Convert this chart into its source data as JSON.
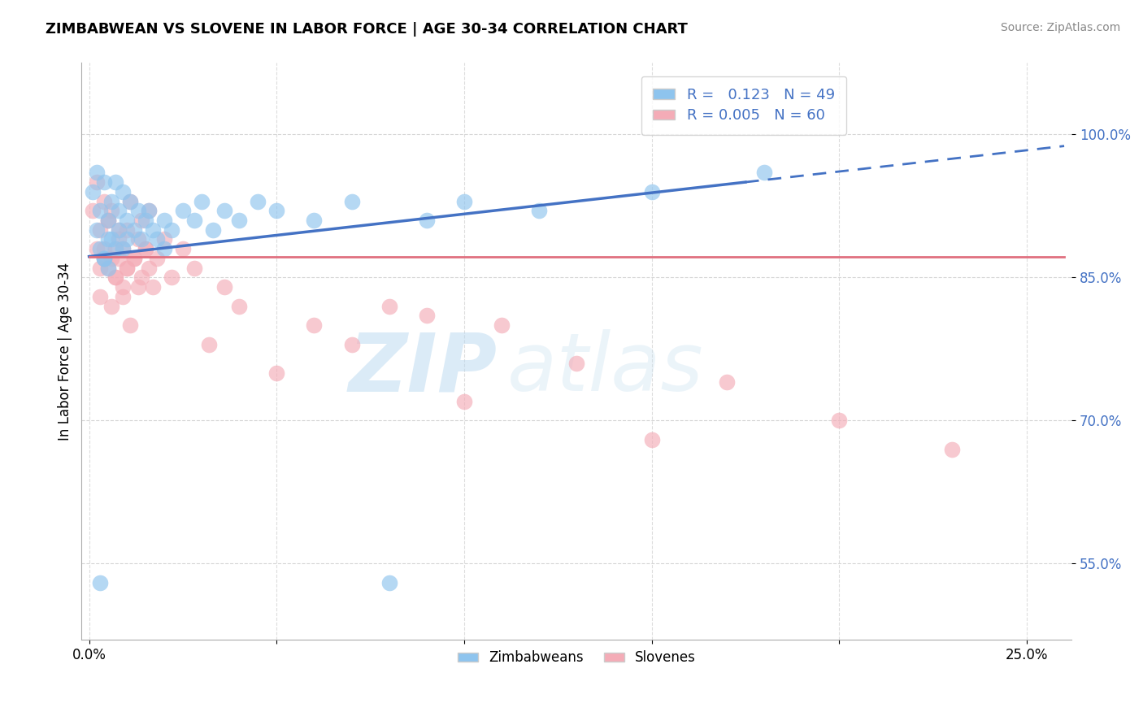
{
  "title": "ZIMBABWEAN VS SLOVENE IN LABOR FORCE | AGE 30-34 CORRELATION CHART",
  "source": "Source: ZipAtlas.com",
  "ylabel": "In Labor Force | Age 30-34",
  "x_ticks": [
    0.0,
    0.05,
    0.1,
    0.15,
    0.2,
    0.25
  ],
  "x_tick_labels": [
    "0.0%",
    "",
    "",
    "",
    "",
    "25.0%"
  ],
  "y_ticks": [
    0.55,
    0.7,
    0.85,
    1.0
  ],
  "y_tick_labels": [
    "55.0%",
    "70.0%",
    "85.0%",
    "100.0%"
  ],
  "xlim": [
    -0.002,
    0.262
  ],
  "ylim": [
    0.47,
    1.075
  ],
  "legend_R1": "0.123",
  "legend_N1": "49",
  "legend_R2": "0.005",
  "legend_N2": "60",
  "color_blue": "#8EC4EE",
  "color_pink": "#F4ACB7",
  "color_blue_line": "#4472C4",
  "color_pink_line": "#E07080",
  "watermark_zip": "ZIP",
  "watermark_atlas": "atlas",
  "zimbabwean_x": [
    0.001,
    0.002,
    0.002,
    0.003,
    0.003,
    0.004,
    0.004,
    0.005,
    0.005,
    0.006,
    0.006,
    0.007,
    0.007,
    0.008,
    0.008,
    0.009,
    0.009,
    0.01,
    0.01,
    0.011,
    0.012,
    0.013,
    0.014,
    0.015,
    0.016,
    0.017,
    0.018,
    0.02,
    0.022,
    0.025,
    0.028,
    0.03,
    0.033,
    0.036,
    0.04,
    0.045,
    0.05,
    0.06,
    0.07,
    0.08,
    0.09,
    0.1,
    0.12,
    0.15,
    0.18,
    0.02,
    0.003,
    0.004,
    0.005
  ],
  "zimbabwean_y": [
    0.94,
    0.96,
    0.9,
    0.92,
    0.88,
    0.95,
    0.87,
    0.91,
    0.86,
    0.93,
    0.89,
    0.95,
    0.88,
    0.92,
    0.9,
    0.94,
    0.88,
    0.91,
    0.89,
    0.93,
    0.9,
    0.92,
    0.89,
    0.91,
    0.92,
    0.9,
    0.89,
    0.91,
    0.9,
    0.92,
    0.91,
    0.93,
    0.9,
    0.92,
    0.91,
    0.93,
    0.92,
    0.91,
    0.93,
    0.53,
    0.91,
    0.93,
    0.92,
    0.94,
    0.96,
    0.88,
    0.53,
    0.87,
    0.89
  ],
  "slovene_x": [
    0.001,
    0.002,
    0.002,
    0.003,
    0.003,
    0.004,
    0.004,
    0.005,
    0.005,
    0.006,
    0.006,
    0.007,
    0.007,
    0.008,
    0.008,
    0.009,
    0.009,
    0.01,
    0.01,
    0.011,
    0.012,
    0.013,
    0.014,
    0.015,
    0.016,
    0.017,
    0.018,
    0.02,
    0.022,
    0.025,
    0.028,
    0.032,
    0.036,
    0.04,
    0.05,
    0.06,
    0.07,
    0.08,
    0.09,
    0.1,
    0.11,
    0.13,
    0.15,
    0.17,
    0.2,
    0.23,
    0.003,
    0.004,
    0.005,
    0.006,
    0.007,
    0.008,
    0.009,
    0.01,
    0.011,
    0.012,
    0.013,
    0.014,
    0.015,
    0.016
  ],
  "slovene_y": [
    0.92,
    0.95,
    0.88,
    0.9,
    0.86,
    0.88,
    0.93,
    0.86,
    0.91,
    0.87,
    0.92,
    0.88,
    0.85,
    0.9,
    0.87,
    0.84,
    0.88,
    0.86,
    0.9,
    0.93,
    0.87,
    0.89,
    0.85,
    0.88,
    0.86,
    0.84,
    0.87,
    0.89,
    0.85,
    0.88,
    0.86,
    0.78,
    0.84,
    0.82,
    0.75,
    0.8,
    0.78,
    0.82,
    0.81,
    0.72,
    0.8,
    0.76,
    0.68,
    0.74,
    0.7,
    0.67,
    0.83,
    0.87,
    0.91,
    0.82,
    0.85,
    0.89,
    0.83,
    0.86,
    0.8,
    0.87,
    0.84,
    0.91,
    0.88,
    0.92
  ]
}
